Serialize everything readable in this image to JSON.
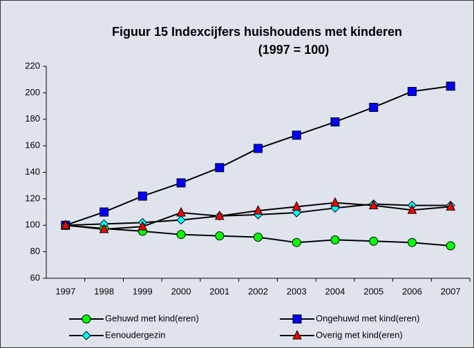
{
  "chart_data": {
    "type": "line",
    "title": "Figuur 15     Indexcijfers huishoudens met kinderen",
    "subtitle": "(1997 = 100)",
    "categories": [
      "1997",
      "1998",
      "1999",
      "2000",
      "2001",
      "2002",
      "2003",
      "2004",
      "2005",
      "2006",
      "2007"
    ],
    "series": [
      {
        "name": "Gehuwd met kind(eren)",
        "color": "#00ff00",
        "marker": "circle",
        "values": [
          100,
          97.5,
          95.5,
          93,
          92,
          91,
          87,
          89,
          88,
          87,
          84.5
        ]
      },
      {
        "name": "Ongehuwd met kind(eren)",
        "color": "#0000ff",
        "marker": "square",
        "values": [
          100,
          110,
          122,
          132,
          143.5,
          158,
          168,
          178,
          189,
          201,
          205
        ]
      },
      {
        "name": "Eenoudergezin",
        "color": "#00ffff",
        "marker": "diamond",
        "values": [
          100,
          101,
          102,
          104,
          107,
          108,
          109.5,
          113,
          116,
          115,
          115
        ]
      },
      {
        "name": "Overig met kind(eren)",
        "color": "#ff0000",
        "marker": "triangle",
        "values": [
          100,
          97,
          99,
          109.5,
          107,
          111,
          114,
          117,
          115,
          111.5,
          114
        ]
      }
    ],
    "ylim": [
      60,
      220
    ],
    "yticks": [
      60,
      80,
      100,
      120,
      140,
      160,
      180,
      200,
      220
    ],
    "grid": false
  }
}
